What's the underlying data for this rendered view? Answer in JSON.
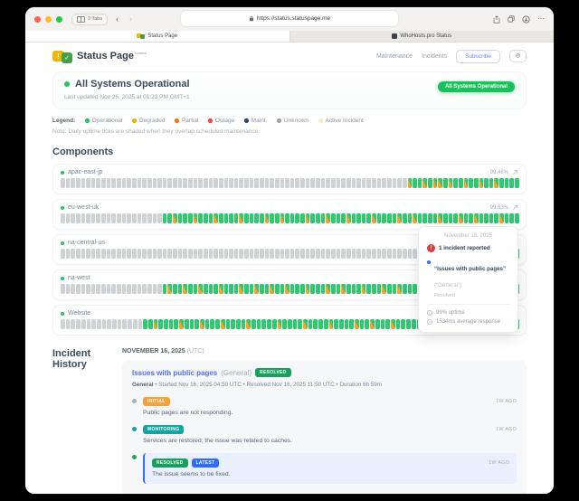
{
  "browser": {
    "tabs_count_label": "2 Tabs",
    "url": "https://status.statuspage.me",
    "tabs": [
      {
        "label": "Status Page",
        "active": true
      },
      {
        "label": "WhoHosts.pro Status",
        "active": false
      }
    ]
  },
  "header": {
    "brand": "Status Page",
    "brand_tag": "hosted",
    "nav": {
      "maintenance": "Maintenance",
      "incidents": "Incidents"
    },
    "subscribe_label": "Subscribe",
    "gear_glyph": "⚙"
  },
  "hero": {
    "title": "All Systems Operational",
    "subtitle": "Last updated Nov 26, 2025 at 01:23 PM GMT+1",
    "badge": "All Systems Operational"
  },
  "legend": {
    "label": "Legend:",
    "items": [
      {
        "label": "Operational",
        "color": "#22c55e"
      },
      {
        "label": "Degraded",
        "color": "#eab308"
      },
      {
        "label": "Partial",
        "color": "#f97316"
      },
      {
        "label": "Outage",
        "color": "#ef4444"
      },
      {
        "label": "Maint.",
        "color": "#2e4a6b"
      },
      {
        "label": "Unknown",
        "color": "#9ca3af"
      },
      {
        "label": "Active Incident",
        "color": "#fbe9c6"
      }
    ],
    "note": "Note: Daily uptime ticks are shaded when they overlap scheduled maintenance."
  },
  "components": {
    "title": "Components",
    "rows": [
      {
        "name": "apac-east-jp",
        "uptime": "99.46%",
        "pattern": "ggggggggggggggggggggggggggggggggggggggggggggggggggggggggggggggggggggSGGSGSSGSGGSGGSGGSGGGG"
      },
      {
        "name": "eu-west-uk",
        "uptime": "99.63%",
        "pattern": "ggggggggggggggggggggGGSGGGSGGGSGGGGSGGGGSGGSGGGGSGGGSGGGSGGGGSGGGGSGGSGGGGSGGGSGGSGGGGSGGG"
      },
      {
        "name": "na-central-us",
        "uptime": "",
        "pattern": "ggggggggggggggggggggggggggggggggggggggggggggggggggggggggggggggggggggggggggggGGSGGGGSGGGGGG"
      },
      {
        "name": "na-west",
        "uptime": "",
        "pattern": "ggggggggggggggggggggGSGGSGGSGGGSGGGSGGSGGSGGSGGGSGGGSGGSGGGSGGGSGGSGGGSGGGSGGSGGGSGGGSGGGG"
      },
      {
        "name": "Website",
        "uptime": "",
        "pattern": "ggggggggggggggggGGSGGGGSGGGSGGGSGGGGSGGGGGSGGGGSGGGGSGGGGSGGSGGGSGGGGGGSGGGGGSGGSHGSGGGSG"
      }
    ]
  },
  "tooltip": {
    "date": "November 16, 2025",
    "alert_glyph": "!",
    "incident_count": "1 incident reported",
    "incident_title": "“Issues with public pages”",
    "incident_scope": "(“General”)",
    "incident_status": "Resolved",
    "uptime_stat": "99% uptime",
    "response_stat": "1534ms average response"
  },
  "incident_history": {
    "title": "Incident History",
    "date_header": "NOVEMBER 16, 2025",
    "date_tz": "(UTC)",
    "incident": {
      "title": "Issues with public pages",
      "scope": "(General)",
      "status_badge": "RESOLVED",
      "status_badge_color": "#17a05a",
      "meta_component": "General",
      "meta_rest": " • Started Nov 16, 2025 04:50 UTC • Resolved Nov 16, 2025 11:50 UTC • Duration 6h 59m",
      "updates": [
        {
          "badges": [
            {
              "label": "INITIAL",
              "color": "#f2a33c"
            }
          ],
          "dot": "#a8b0b8",
          "time": "1W AGO",
          "text": "Public pages are not responding.",
          "highlight": false
        },
        {
          "badges": [
            {
              "label": "MONITORING",
              "color": "#16a3a3"
            }
          ],
          "dot": "#16a3a3",
          "time": "1W AGO",
          "text": "Services are restored; the issue was related to caches.",
          "highlight": false
        },
        {
          "badges": [
            {
              "label": "RESOLVED",
              "color": "#17a05a"
            },
            {
              "label": "LATEST",
              "color": "#2f6bff"
            }
          ],
          "dot": "#22a35e",
          "time": "1W AGO",
          "text": "The issue seems to be fixed.",
          "highlight": true
        }
      ]
    }
  }
}
